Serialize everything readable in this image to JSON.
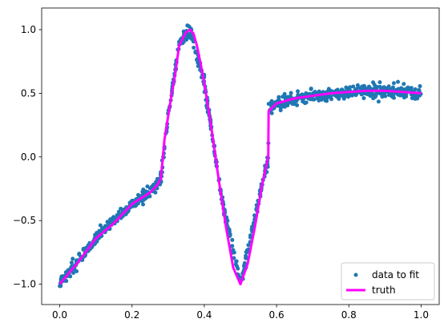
{
  "chart_data": {
    "type": "scatter",
    "title": "",
    "xlabel": "",
    "ylabel": "",
    "xlim": [
      -0.05,
      1.05
    ],
    "ylim": [
      -1.16,
      1.17
    ],
    "x_ticks": [
      0.0,
      0.2,
      0.4,
      0.6,
      0.8,
      1.0
    ],
    "x_tick_labels": [
      "0.0",
      "0.2",
      "0.4",
      "0.6",
      "0.8",
      "1.0"
    ],
    "y_ticks": [
      -1.0,
      -0.5,
      0.0,
      0.5,
      1.0
    ],
    "y_tick_labels": [
      "−1.0",
      "−0.5",
      "0.0",
      "0.5",
      "1.0"
    ],
    "grid": false,
    "legend_position": "lower-right",
    "series": [
      {
        "name": "data to fit",
        "kind": "scatter",
        "color": "#1f77b4",
        "approx_points": 1000,
        "noise_std": 0.025,
        "x": [
          0.0,
          0.1,
          0.2,
          0.27,
          0.28,
          0.3,
          0.33,
          0.36,
          0.4,
          0.45,
          0.5,
          0.55,
          0.577,
          0.578,
          0.6,
          0.7,
          0.8,
          0.9,
          1.0
        ],
        "y": [
          -1.0,
          -0.64,
          -0.37,
          -0.22,
          -0.17,
          0.32,
          0.87,
          1.0,
          0.58,
          -0.36,
          -1.0,
          -0.35,
          0.0,
          0.36,
          0.42,
          0.48,
          0.51,
          0.52,
          0.5
        ]
      },
      {
        "name": "truth",
        "kind": "line",
        "color": "#ff00ff",
        "x": [
          0.0,
          0.05,
          0.1,
          0.15,
          0.2,
          0.25,
          0.27,
          0.28,
          0.29,
          0.3,
          0.31,
          0.32,
          0.33,
          0.34,
          0.35,
          0.36,
          0.37,
          0.38,
          0.39,
          0.4,
          0.42,
          0.44,
          0.46,
          0.48,
          0.5,
          0.52,
          0.54,
          0.56,
          0.577,
          0.578,
          0.6,
          0.65,
          0.7,
          0.75,
          0.8,
          0.85,
          0.9,
          0.95,
          1.0
        ],
        "y": [
          -1.0,
          -0.83,
          -0.64,
          -0.52,
          -0.37,
          -0.28,
          -0.22,
          -0.17,
          0.14,
          0.32,
          0.5,
          0.66,
          0.87,
          0.93,
          0.98,
          1.0,
          0.97,
          0.87,
          0.73,
          0.58,
          0.22,
          -0.18,
          -0.55,
          -0.87,
          -1.0,
          -0.84,
          -0.55,
          -0.22,
          0.0,
          0.36,
          0.42,
          0.46,
          0.48,
          0.5,
          0.51,
          0.52,
          0.52,
          0.51,
          0.5
        ]
      }
    ]
  }
}
